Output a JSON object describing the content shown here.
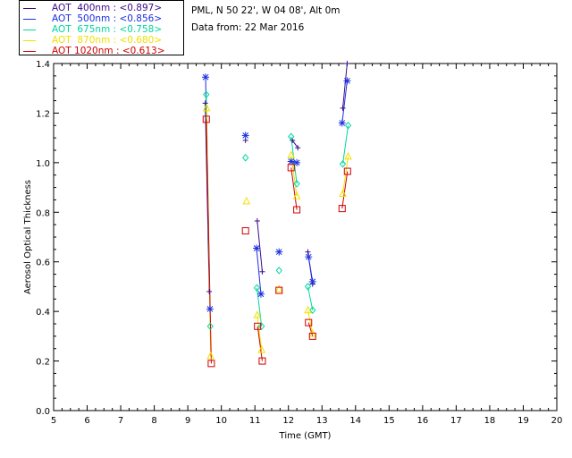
{
  "info": {
    "location": "PML, N 50 22', W 04 08', Alt 0m",
    "date": "Data from: 22 Mar 2016"
  },
  "legend": [
    {
      "label": "AOT  400nm : <0.897>",
      "color": "#3d0a8a"
    },
    {
      "label": "AOT  500nm : <0.856>",
      "color": "#1a2fe0"
    },
    {
      "label": "AOT  675nm : <0.758>",
      "color": "#00d6a0"
    },
    {
      "label": "AOT  870nm : <0.680>",
      "color": "#f0e000"
    },
    {
      "label": "AOT 1020nm : <0.613>",
      "color": "#d00000"
    }
  ],
  "chart_data": {
    "type": "scatter",
    "xlabel": "Time (GMT)",
    "ylabel": "Aerosol Optical Thickness",
    "xlim": [
      5,
      20
    ],
    "ylim": [
      0,
      1.4
    ],
    "xticks": [
      "5",
      "6",
      "7",
      "8",
      "9",
      "10",
      "11",
      "12",
      "13",
      "14",
      "15",
      "16",
      "17",
      "18",
      "19",
      "20"
    ],
    "yticks": [
      "0.0",
      "0.2",
      "0.4",
      "0.6",
      "0.8",
      "1.0",
      "1.2",
      "1.4"
    ],
    "series": [
      {
        "name": "AOT  400nm : <0.897>",
        "color": "#3d0a8a",
        "marker": "plus",
        "points": [
          [
            9.52,
            1.24
          ],
          [
            9.64,
            0.48
          ],
          [
            10.72,
            1.09
          ],
          [
            11.07,
            0.765
          ],
          [
            11.22,
            0.56
          ],
          [
            12.12,
            1.09
          ],
          [
            12.28,
            1.06
          ],
          [
            12.58,
            0.64
          ],
          [
            12.72,
            0.51
          ],
          [
            13.62,
            1.22
          ],
          [
            13.75,
            1.4
          ]
        ],
        "segments": [
          [
            [
              9.52,
              1.24
            ],
            [
              9.64,
              0.48
            ]
          ],
          [
            [
              11.07,
              0.765
            ],
            [
              11.22,
              0.56
            ]
          ],
          [
            [
              12.12,
              1.09
            ],
            [
              12.28,
              1.06
            ]
          ],
          [
            [
              12.58,
              0.64
            ],
            [
              12.72,
              0.51
            ]
          ],
          [
            [
              13.62,
              1.22
            ],
            [
              13.75,
              1.4
            ]
          ]
        ]
      },
      {
        "name": "AOT  500nm : <0.856>",
        "color": "#1a2fe0",
        "marker": "asterisk",
        "points": [
          [
            9.53,
            1.345
          ],
          [
            9.66,
            0.41
          ],
          [
            10.72,
            1.11
          ],
          [
            11.05,
            0.655
          ],
          [
            11.18,
            0.47
          ],
          [
            11.72,
            0.64
          ],
          [
            12.08,
            1.005
          ],
          [
            12.25,
            1.0
          ],
          [
            12.6,
            0.62
          ],
          [
            12.72,
            0.52
          ],
          [
            13.6,
            1.16
          ],
          [
            13.75,
            1.33
          ]
        ],
        "segments": [
          [
            [
              9.53,
              1.345
            ],
            [
              9.66,
              0.41
            ]
          ],
          [
            [
              11.05,
              0.655
            ],
            [
              11.18,
              0.47
            ]
          ],
          [
            [
              12.08,
              1.005
            ],
            [
              12.25,
              1.0
            ]
          ],
          [
            [
              12.6,
              0.62
            ],
            [
              12.72,
              0.52
            ]
          ],
          [
            [
              13.6,
              1.16
            ],
            [
              13.75,
              1.33
            ]
          ]
        ]
      },
      {
        "name": "AOT  675nm : <0.758>",
        "color": "#00d6a0",
        "marker": "diamond",
        "points": [
          [
            9.55,
            1.275
          ],
          [
            9.67,
            0.34
          ],
          [
            10.72,
            1.02
          ],
          [
            11.06,
            0.495
          ],
          [
            11.2,
            0.34
          ],
          [
            11.72,
            0.565
          ],
          [
            12.08,
            1.105
          ],
          [
            12.25,
            0.915
          ],
          [
            12.58,
            0.5
          ],
          [
            12.72,
            0.405
          ],
          [
            13.62,
            0.995
          ],
          [
            13.78,
            1.15
          ]
        ],
        "segments": [
          [
            [
              9.55,
              1.275
            ],
            [
              9.67,
              0.34
            ]
          ],
          [
            [
              11.06,
              0.495
            ],
            [
              11.2,
              0.34
            ]
          ],
          [
            [
              12.08,
              1.105
            ],
            [
              12.25,
              0.915
            ]
          ],
          [
            [
              12.58,
              0.5
            ],
            [
              12.72,
              0.405
            ]
          ],
          [
            [
              13.62,
              0.995
            ],
            [
              13.78,
              1.15
            ]
          ]
        ]
      },
      {
        "name": "AOT  870nm : <0.680>",
        "color": "#f0e000",
        "marker": "triangle",
        "points": [
          [
            9.56,
            1.22
          ],
          [
            9.68,
            0.22
          ],
          [
            10.75,
            0.845
          ],
          [
            11.07,
            0.385
          ],
          [
            11.2,
            0.245
          ],
          [
            11.72,
            0.49
          ],
          [
            12.08,
            1.03
          ],
          [
            12.25,
            0.865
          ],
          [
            12.58,
            0.405
          ],
          [
            12.72,
            0.31
          ],
          [
            13.62,
            0.875
          ],
          [
            13.78,
            1.025
          ]
        ],
        "segments": [
          [
            [
              9.56,
              1.22
            ],
            [
              9.68,
              0.22
            ]
          ],
          [
            [
              11.07,
              0.385
            ],
            [
              11.2,
              0.245
            ]
          ],
          [
            [
              12.08,
              1.03
            ],
            [
              12.25,
              0.865
            ]
          ],
          [
            [
              12.58,
              0.405
            ],
            [
              12.72,
              0.31
            ]
          ],
          [
            [
              13.62,
              0.875
            ],
            [
              13.78,
              1.025
            ]
          ]
        ]
      },
      {
        "name": "AOT 1020nm : <0.613>",
        "color": "#d00000",
        "marker": "square",
        "points": [
          [
            9.55,
            1.175
          ],
          [
            9.7,
            0.19
          ],
          [
            10.72,
            0.725
          ],
          [
            11.08,
            0.34
          ],
          [
            11.22,
            0.2
          ],
          [
            11.72,
            0.485
          ],
          [
            12.08,
            0.98
          ],
          [
            12.25,
            0.81
          ],
          [
            12.6,
            0.355
          ],
          [
            12.72,
            0.3
          ],
          [
            13.6,
            0.815
          ],
          [
            13.76,
            0.965
          ]
        ],
        "segments": [
          [
            [
              9.55,
              1.175
            ],
            [
              9.7,
              0.19
            ]
          ],
          [
            [
              11.08,
              0.34
            ],
            [
              11.22,
              0.2
            ]
          ],
          [
            [
              12.08,
              0.98
            ],
            [
              12.25,
              0.81
            ]
          ],
          [
            [
              12.6,
              0.355
            ],
            [
              12.72,
              0.3
            ]
          ],
          [
            [
              13.6,
              0.815
            ],
            [
              13.76,
              0.965
            ]
          ]
        ]
      }
    ]
  }
}
